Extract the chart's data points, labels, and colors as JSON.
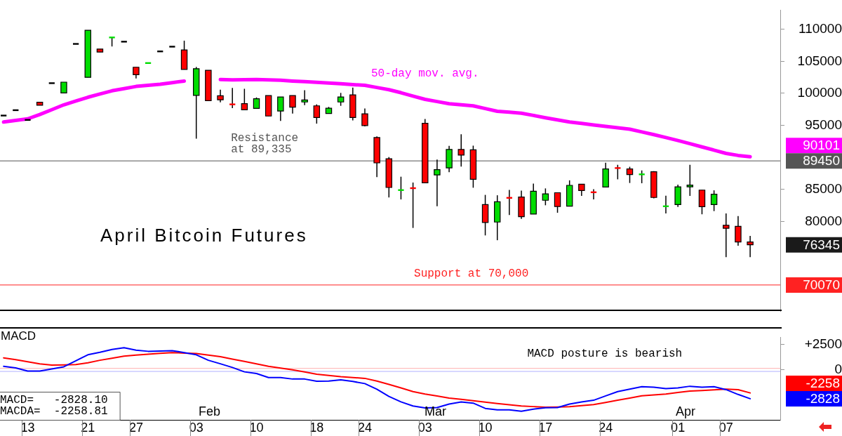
{
  "chart_data": [
    {
      "type": "candlestick",
      "title": "April Bitcoin Futures",
      "categories": [
        null,
        null,
        "13",
        null,
        null,
        null,
        null,
        "21",
        null,
        null,
        null,
        "27",
        null,
        null,
        null,
        null,
        "03",
        null,
        null,
        null,
        null,
        "10",
        null,
        null,
        null,
        null,
        "18",
        null,
        null,
        null,
        "24",
        null,
        null,
        null,
        null,
        "03",
        null,
        null,
        null,
        null,
        "10",
        null,
        null,
        null,
        null,
        "17",
        null,
        null,
        null,
        null,
        "24",
        null,
        null,
        null,
        null,
        null,
        "01",
        null,
        null,
        null,
        "07",
        null,
        null
      ],
      "ohlc": [
        [
          96530,
          96530,
          96530,
          96530
        ],
        [
          97370,
          97370,
          97370,
          97370
        ],
        [
          95850,
          95850,
          95850,
          95850
        ],
        [
          98610,
          98610,
          98150,
          98150
        ],
        [
          101590,
          101590,
          101590,
          101590
        ],
        [
          100070,
          101750,
          100070,
          101750
        ],
        [
          107720,
          107720,
          107720,
          107720
        ],
        [
          102500,
          109850,
          102500,
          109850
        ],
        [
          106910,
          106910,
          106450,
          106450
        ],
        [
          108730,
          108730,
          107320,
          108730
        ],
        [
          108070,
          108070,
          108070,
          108070
        ],
        [
          104080,
          104080,
          102330,
          102920
        ],
        [
          104730,
          104730,
          104730,
          104730
        ],
        [
          106550,
          106550,
          106550,
          106550
        ],
        [
          107290,
          107290,
          107290,
          107290
        ],
        [
          106780,
          108230,
          103740,
          103740
        ],
        [
          99670,
          104120,
          92920,
          103850
        ],
        [
          103610,
          103610,
          98860,
          98860
        ],
        [
          99630,
          100580,
          98610,
          98990
        ],
        [
          98280,
          100840,
          97700,
          98280
        ],
        [
          98380,
          100710,
          97440,
          97440
        ],
        [
          97640,
          99360,
          97640,
          99160
        ],
        [
          99660,
          99660,
          96460,
          96460
        ],
        [
          97240,
          99430,
          95680,
          99430
        ],
        [
          99660,
          99660,
          96830,
          97840
        ],
        [
          98650,
          100480,
          98150,
          98960
        ],
        [
          98050,
          98280,
          95270,
          96230
        ],
        [
          96860,
          97880,
          96860,
          97670
        ],
        [
          98650,
          100070,
          98050,
          99430
        ],
        [
          99770,
          100910,
          95780,
          96230
        ],
        [
          96790,
          97640,
          94840,
          94970
        ],
        [
          93090,
          93290,
          86920,
          89140
        ],
        [
          89780,
          90050,
          83740,
          85300
        ],
        [
          84890,
          86980,
          83430,
          84890
        ],
        [
          85190,
          86070,
          78980,
          85190
        ],
        [
          95310,
          95980,
          86030,
          86030
        ],
        [
          87250,
          89650,
          82360,
          88090
        ],
        [
          88360,
          91800,
          87680,
          91230
        ],
        [
          91230,
          93620,
          88560,
          90360
        ],
        [
          91170,
          91830,
          85260,
          86570
        ],
        [
          82620,
          84140,
          77810,
          79830
        ],
        [
          79900,
          84080,
          77060,
          83070
        ],
        [
          83680,
          84930,
          81000,
          83680
        ],
        [
          83810,
          84820,
          80400,
          80740
        ],
        [
          81150,
          85900,
          81150,
          84720
        ],
        [
          83300,
          85150,
          82520,
          84310
        ],
        [
          84480,
          84480,
          81350,
          82320
        ],
        [
          82390,
          86410,
          82390,
          85630
        ],
        [
          85800,
          85800,
          83980,
          84820
        ],
        [
          84550,
          85020,
          83430,
          84550
        ],
        [
          85360,
          89170,
          85360,
          88190
        ],
        [
          88330,
          88840,
          86570,
          88330
        ],
        [
          88190,
          88530,
          86000,
          87320
        ],
        [
          87350,
          87960,
          85960,
          87350
        ],
        [
          87760,
          87860,
          83610,
          83740
        ],
        [
          82360,
          84010,
          81250,
          82360
        ],
        [
          82620,
          85730,
          82260,
          85400
        ],
        [
          85400,
          88840,
          83980,
          85670
        ],
        [
          84890,
          84890,
          81110,
          82290
        ],
        [
          82620,
          84850,
          81610,
          84240
        ],
        [
          79390,
          81250,
          74430,
          78920
        ],
        [
          79220,
          80840,
          76190,
          76790
        ],
        [
          76790,
          77740,
          74430,
          76345
        ]
      ],
      "colors": [
        "#000000",
        "#000000",
        "#000000",
        "#ff0000",
        "#000000",
        "#00dd00",
        "#000000",
        "#00dd00",
        "#ff0000",
        "#00dd00",
        "#000000",
        "#ff0000",
        "#00dd00",
        "#000000",
        "#000000",
        "#ff0000",
        "#00dd00",
        "#ff0000",
        "#ff0000",
        "#ff0000",
        "#ff0000",
        "#00dd00",
        "#ff0000",
        "#00dd00",
        "#ff0000",
        "#00dd00",
        "#ff0000",
        "#00dd00",
        "#00dd00",
        "#ff0000",
        "#ff0000",
        "#ff0000",
        "#ff0000",
        "#00dd00",
        "#ff0000",
        "#ff0000",
        "#00dd00",
        "#00dd00",
        "#ff0000",
        "#ff0000",
        "#ff0000",
        "#00dd00",
        "#ff0000",
        "#ff0000",
        "#00dd00",
        "#00dd00",
        "#ff0000",
        "#00dd00",
        "#ff0000",
        "#ff0000",
        "#00dd00",
        "#ff0000",
        "#ff0000",
        "#00dd00",
        "#ff0000",
        "#00dd00",
        "#00dd00",
        "#00dd00",
        "#ff0000",
        "#00dd00",
        "#ff0000",
        "#ff0000",
        "#ff0000"
      ],
      "series": [
        {
          "type": "line",
          "name": "50-day mov. avg.",
          "color": "#ff00ff",
          "values": [
            95520,
            95770,
            96020,
            96690,
            97450,
            98210,
            98800,
            99390,
            99900,
            100400,
            100740,
            101080,
            101250,
            101420,
            101670,
            101920,
            null,
            null,
            102150,
            102100,
            102130,
            102160,
            102100,
            102040,
            101920,
            101820,
            101720,
            101620,
            101490,
            101370,
            101250,
            100910,
            100570,
            100100,
            99560,
            99060,
            98720,
            98380,
            98220,
            98050,
            97620,
            97200,
            97050,
            96900,
            96550,
            96190,
            95850,
            95520,
            95300,
            95070,
            94840,
            94620,
            94400,
            93980,
            93550,
            93100,
            92640,
            92140,
            91630,
            91130,
            90620,
            90300,
            90101
          ]
        }
      ],
      "ylim": [
        66000,
        113000
      ],
      "yticks": [
        80000,
        85000,
        95000,
        100000,
        105000,
        110000
      ],
      "annotations": [
        "Resistance at 89,335",
        "Support at 70,000",
        "76345",
        "90101"
      ],
      "ref_lines": [
        {
          "axis": "y",
          "value": 89450,
          "label": "89450",
          "color": "#555555"
        },
        {
          "axis": "y",
          "value": 70070,
          "label": "70070",
          "color": "#ff2222"
        }
      ],
      "tick_labels": "y"
    },
    {
      "type": "line",
      "title": "MACD",
      "categories": [
        null,
        null,
        "13",
        null,
        null,
        null,
        null,
        "21",
        null,
        null,
        null,
        "27",
        null,
        null,
        null,
        null,
        "03",
        null,
        null,
        null,
        null,
        "10",
        null,
        null,
        null,
        null,
        "18",
        null,
        null,
        null,
        "24",
        null,
        null,
        null,
        null,
        "03",
        null,
        null,
        null,
        null,
        "10",
        null,
        null,
        null,
        null,
        "17",
        null,
        null,
        null,
        null,
        "24",
        null,
        null,
        null,
        null,
        null,
        "01",
        null,
        null,
        null,
        "07",
        null,
        null
      ],
      "series": [
        {
          "color": "#0000ff",
          "values": [
            356,
            200,
            -117,
            -117,
            100,
            307,
            900,
            1486,
            1725,
            2008,
            2173,
            1934,
            1824,
            1850,
            1891,
            1700,
            1486,
            945,
            600,
            240,
            -190,
            -356,
            -755,
            -755,
            -896,
            -896,
            -1111,
            -1090,
            -970,
            -1136,
            -1345,
            -1891,
            -2597,
            -3137,
            -3543,
            -3733,
            -3690,
            -3352,
            -3137,
            -3260,
            -3776,
            -3917,
            -3917,
            -4058,
            -3850,
            -3709,
            -3690,
            -3352,
            -3137,
            -2978,
            -2548,
            -2124,
            -1891,
            -1652,
            -1700,
            -1842,
            -1760,
            -1603,
            -1700,
            -1652,
            -1934,
            -2407,
            -2828.1
          ]
        },
        {
          "color": "#ff0000",
          "values": [
            1179,
            1000,
            800,
            589,
            473,
            490,
            522,
            700,
            945,
            1150,
            1345,
            1450,
            1535,
            1620,
            1701,
            1650,
            1609,
            1450,
            1302,
            1060,
            829,
            600,
            356,
            180,
            0,
            -200,
            -424,
            -540,
            -663,
            -750,
            -829,
            -1100,
            -1418,
            -1770,
            -2124,
            -2364,
            -2560,
            -2763,
            -2890,
            -3021,
            -3160,
            -3303,
            -3420,
            -3543,
            -3600,
            -3660,
            -3640,
            -3611,
            -3500,
            -3402,
            -3190,
            -2978,
            -2760,
            -2548,
            -2450,
            -2364,
            -2220,
            -2075,
            -2020,
            -1959,
            -1891,
            -1934,
            -2258.81
          ]
        }
      ],
      "ylim": [
        -4900,
        3200
      ],
      "yticks": [
        {
          "value": 2500,
          "label": "+2500"
        },
        0
      ],
      "ref_lines": [
        {
          "axis": "y",
          "value": 150,
          "color": "#ffb0b0"
        },
        {
          "axis": "y",
          "value": -150,
          "color": "#b0b0ff"
        }
      ],
      "annotations": [
        "MACD posture is bearish",
        "MACD=   -2828.10",
        "MACDA=  -2258.81",
        "Feb",
        "Mar",
        "Apr",
        "-2258",
        "-2828"
      ]
    }
  ]
}
